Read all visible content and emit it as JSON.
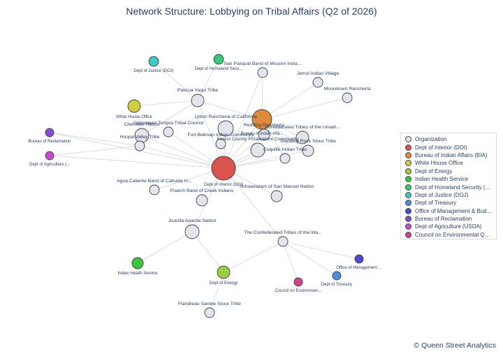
{
  "title": "Network Structure: Lobbying on Tribal Affairs (Q2 of 2026)",
  "credit": "© Queen Street Analytics",
  "legend": [
    {
      "label": "Organization",
      "color": "#e2e6ec"
    },
    {
      "label": "Dept of Interior (DOI)",
      "color": "#d9534f"
    },
    {
      "label": "Bureau of Indian Affairs (BIA)",
      "color": "#dd8a3d"
    },
    {
      "label": "White House Office",
      "color": "#d4cc3f"
    },
    {
      "label": "Dept of Energy",
      "color": "#9ccc41"
    },
    {
      "label": "Indian Health Service",
      "color": "#3cc43c"
    },
    {
      "label": "Dept of Homeland Security (DH...",
      "color": "#39c77a"
    },
    {
      "label": "Dept of Justice (DOJ)",
      "color": "#3ec8c8"
    },
    {
      "label": "Dept of Treasury",
      "color": "#4a8edc"
    },
    {
      "label": "Office of Management & Budget...",
      "color": "#4b4bd0"
    },
    {
      "label": "Bureau of Reclamation",
      "color": "#8a4bd2"
    },
    {
      "label": "Dept of Agriculture (USDA)",
      "color": "#c84bd2"
    },
    {
      "label": "Council on Environmental Qual...",
      "color": "#d23f8a"
    }
  ],
  "nodes": [
    {
      "id": "doi",
      "label": "Dept of Interior (DOI)",
      "color": "#d9534f",
      "kind": "agency"
    },
    {
      "id": "bia",
      "label": "Bureau of Indian Affa...",
      "color": "#dd8a3d",
      "kind": "agency"
    },
    {
      "id": "whitehouse",
      "label": "White House Office",
      "color": "#d4cc3f",
      "kind": "agency"
    },
    {
      "id": "doe",
      "label": "Dept of Energy",
      "color": "#9ccc41",
      "kind": "agency"
    },
    {
      "id": "ihs",
      "label": "Indian Health Service",
      "color": "#3cc43c",
      "kind": "agency"
    },
    {
      "id": "dhs",
      "label": "Dept of Homeland Secu...",
      "color": "#39c77a",
      "kind": "agency"
    },
    {
      "id": "doj",
      "label": "Dept of Justice (DOJ)",
      "color": "#3ec8c8",
      "kind": "agency"
    },
    {
      "id": "treasury",
      "label": "Dept of Treasury",
      "color": "#4a8edc",
      "kind": "agency"
    },
    {
      "id": "omb",
      "label": "Office of Management ...",
      "color": "#4b4bd0",
      "kind": "agency"
    },
    {
      "id": "reclamation",
      "label": "Bureau of Reclamation",
      "color": "#8a4bd2",
      "kind": "agency"
    },
    {
      "id": "usda",
      "label": "Dept of Agriculture (...",
      "color": "#c84bd2",
      "kind": "agency"
    },
    {
      "id": "ceq",
      "label": "Council on Environmen...",
      "color": "#d23f8a",
      "kind": "agency"
    },
    {
      "id": "sanpasqual",
      "label": "San Pasqual Band of Mission India...",
      "color": "#e2e6ec",
      "kind": "org"
    },
    {
      "id": "jamul",
      "label": "Jamul Indian Village",
      "color": "#e2e6ec",
      "kind": "org"
    },
    {
      "id": "mooretown",
      "label": "Mooretown Rancheria",
      "color": "#e2e6ec",
      "kind": "org"
    },
    {
      "id": "pascua",
      "label": "Pascua Yaqui Tribe",
      "color": "#e2e6ec",
      "kind": "org"
    },
    {
      "id": "lytton",
      "label": "Lytton Rancheria of California",
      "color": "#e2e6ec",
      "kind": "org"
    },
    {
      "id": "redding",
      "label": "Redding Rancheria",
      "color": "#e2e6ec",
      "kind": "org"
    },
    {
      "id": "umatilla",
      "label": "Confederated Tribes of the Umatil...",
      "color": "#e2e6ec",
      "kind": "org"
    },
    {
      "id": "standingrock",
      "label": "Standing Rock Sioux Tribe",
      "color": "#e2e6ec",
      "kind": "org"
    },
    {
      "id": "coquille",
      "label": "Coquille Indian Tribe",
      "color": "#e2e6ec",
      "kind": "org"
    },
    {
      "id": "cherokee",
      "label": "Cherokee Nation",
      "color": "#e2e6ec",
      "kind": "org"
    },
    {
      "id": "gabrieleno",
      "label": "Gabrieleno Tongva Tribal Council",
      "color": "#e2e6ec",
      "kind": "org"
    },
    {
      "id": "hoopa",
      "label": "Hoopa Valley Tribe",
      "color": "#e2e6ec",
      "kind": "org"
    },
    {
      "id": "fortbelknap",
      "label": "Fort Belknap Indian Community",
      "color": "#e2e6ec",
      "kind": "org"
    },
    {
      "id": "forestcounty",
      "label": "Forest County Potawatomi Community",
      "color": "#e2e6ec",
      "kind": "org"
    },
    {
      "id": "aguacaliente",
      "label": "Agua Caliente Band of Cahuilla In...",
      "color": "#e2e6ec",
      "kind": "org"
    },
    {
      "id": "poarch",
      "label": "Poarch Band of Creek Indians",
      "color": "#e2e6ec",
      "kind": "org"
    },
    {
      "id": "yuhaaviatam",
      "label": "Yuhaaviatam of San Manuel Nation",
      "color": "#e2e6ec",
      "kind": "org"
    },
    {
      "id": "jicarilla",
      "label": "Jicarilla Apache Nation",
      "color": "#e2e6ec",
      "kind": "org"
    },
    {
      "id": "warmsprings",
      "label": "The Confederated Tribes of the Wa...",
      "color": "#e2e6ec",
      "kind": "org"
    },
    {
      "id": "flandreau",
      "label": "Flandreau Santee Sioux Tribe",
      "color": "#e2e6ec",
      "kind": "org"
    }
  ],
  "edges": [
    [
      "doi",
      "bia"
    ],
    [
      "doi",
      "pascua"
    ],
    [
      "doi",
      "lytton"
    ],
    [
      "doi",
      "umatilla"
    ],
    [
      "doi",
      "standingrock"
    ],
    [
      "doi",
      "coquille"
    ],
    [
      "doi",
      "cherokee"
    ],
    [
      "doi",
      "gabrieleno"
    ],
    [
      "doi",
      "hoopa"
    ],
    [
      "doi",
      "fortbelknap"
    ],
    [
      "doi",
      "forestcounty"
    ],
    [
      "doi",
      "aguacaliente"
    ],
    [
      "doi",
      "poarch"
    ],
    [
      "doi",
      "yuhaaviatam"
    ],
    [
      "doi",
      "jicarilla"
    ],
    [
      "doi",
      "warmsprings"
    ],
    [
      "doi",
      "redding"
    ],
    [
      "doi",
      "sanpasqual"
    ],
    [
      "doi",
      "reclamation"
    ],
    [
      "doi",
      "usda"
    ],
    [
      "bia",
      "sanpasqual"
    ],
    [
      "bia",
      "jamul"
    ],
    [
      "bia",
      "mooretown"
    ],
    [
      "bia",
      "pascua"
    ],
    [
      "bia",
      "redding"
    ],
    [
      "bia",
      "umatilla"
    ],
    [
      "bia",
      "standingrock"
    ],
    [
      "bia",
      "coquille"
    ],
    [
      "bia",
      "forestcounty"
    ],
    [
      "pascua",
      "dhs"
    ],
    [
      "pascua",
      "doj"
    ],
    [
      "pascua",
      "whitehouse"
    ],
    [
      "pascua",
      "cherokee"
    ],
    [
      "hoopa",
      "reclamation"
    ],
    [
      "hoopa",
      "usda"
    ],
    [
      "cherokee",
      "whitehouse"
    ],
    [
      "jicarilla",
      "doe"
    ],
    [
      "jicarilla",
      "ihs"
    ],
    [
      "warmsprings",
      "doe"
    ],
    [
      "warmsprings",
      "ceq"
    ],
    [
      "warmsprings",
      "treasury"
    ],
    [
      "warmsprings",
      "omb"
    ],
    [
      "doe",
      "flandreau"
    ]
  ]
}
